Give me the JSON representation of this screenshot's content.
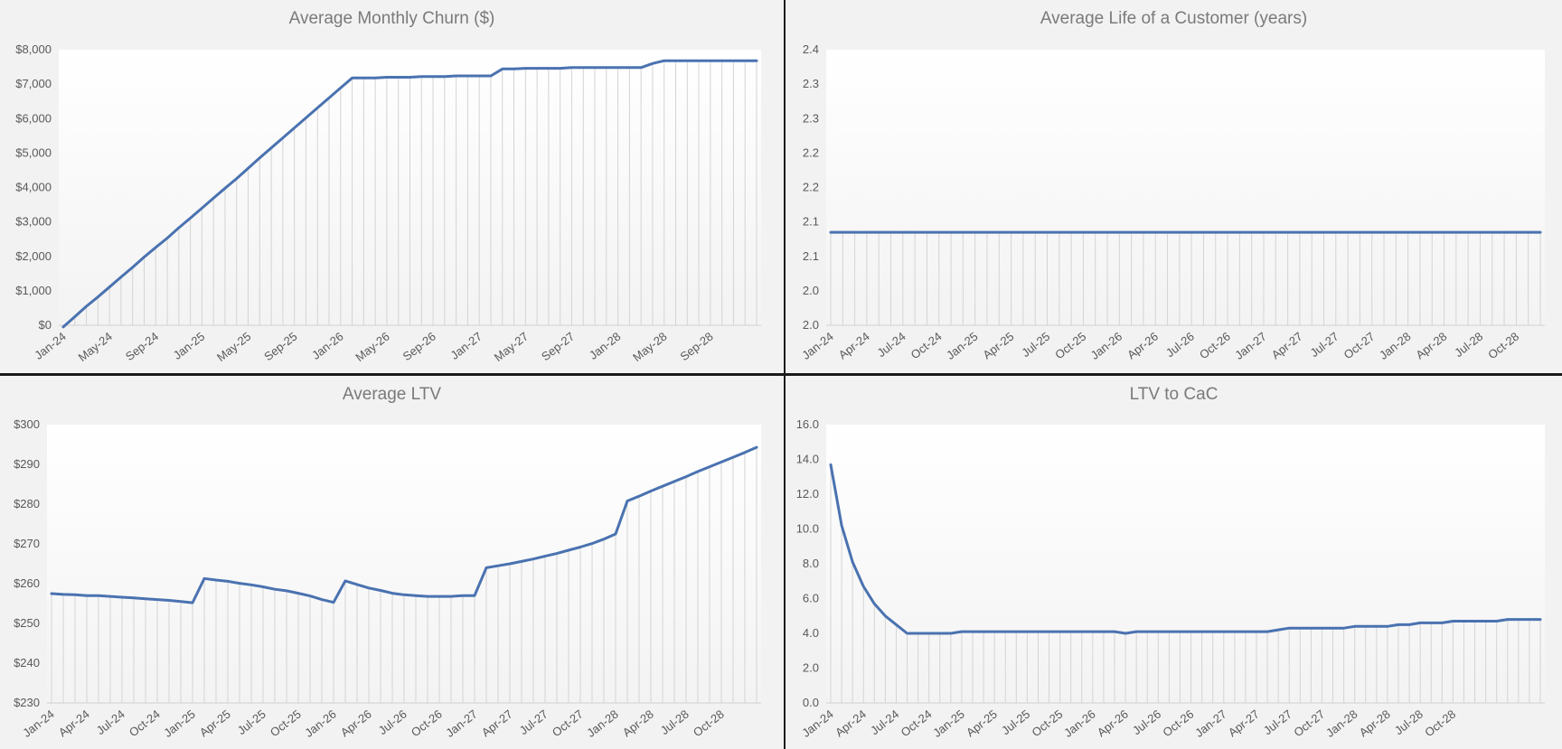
{
  "chart_data": [
    {
      "type": "line",
      "title": "Average Monthly Churn ($)",
      "ylim": [
        0,
        8000
      ],
      "y_ticks": [
        0,
        1000,
        2000,
        3000,
        4000,
        5000,
        6000,
        7000,
        8000
      ],
      "y_tick_labels": [
        "$0",
        "$1,000",
        "$2,000",
        "$3,000",
        "$4,000",
        "$5,000",
        "$6,000",
        "$7,000",
        "$8,000"
      ],
      "x_tick_labels": [
        "Jan-24",
        "May-24",
        "Sep-24",
        "Jan-25",
        "May-25",
        "Sep-25",
        "Jan-26",
        "May-26",
        "Sep-26",
        "Jan-27",
        "May-27",
        "Sep-27",
        "Jan-28",
        "May-28",
        "Sep-28"
      ],
      "x_tick_every": 4,
      "grid": "vertical",
      "color": "#4a72b0",
      "series": [
        {
          "values": [
            -50,
            250,
            550,
            820,
            1110,
            1400,
            1680,
            1980,
            2260,
            2530,
            2830,
            3110,
            3400,
            3690,
            3980,
            4260,
            4560,
            4860,
            5150,
            5440,
            5730,
            6020,
            6310,
            6600,
            6890,
            7180,
            7180,
            7180,
            7200,
            7200,
            7200,
            7220,
            7220,
            7220,
            7240,
            7240,
            7240,
            7240,
            7440,
            7440,
            7460,
            7460,
            7460,
            7460,
            7480,
            7480,
            7480,
            7480,
            7480,
            7480,
            7480,
            7600,
            7680,
            7680,
            7680,
            7680,
            7680,
            7680,
            7680,
            7680,
            7680
          ]
        }
      ]
    },
    {
      "type": "line",
      "title": "Average Life of a Customer (years)",
      "ylim": [
        2.0,
        2.4
      ],
      "y_ticks": [
        2.0,
        2.05,
        2.1,
        2.15,
        2.2,
        2.25,
        2.3,
        2.35,
        2.4
      ],
      "y_tick_labels": [
        "2.0",
        "2.0",
        "2.1",
        "2.1",
        "2.2",
        "2.2",
        "2.3",
        "2.3",
        "2.4"
      ],
      "x_tick_labels": [
        "Jan-24",
        "Apr-24",
        "Jul-24",
        "Oct-24",
        "Jan-25",
        "Apr-25",
        "Jul-25",
        "Oct-25",
        "Jan-26",
        "Apr-26",
        "Jul-26",
        "Oct-26",
        "Jan-27",
        "Apr-27",
        "Jul-27",
        "Oct-27",
        "Jan-28",
        "Apr-28",
        "Jul-28",
        "Oct-28"
      ],
      "x_tick_every": 3,
      "grid": "vertical",
      "color": "#4a72b0",
      "series": [
        {
          "values": [
            2.135,
            2.135,
            2.135,
            2.135,
            2.135,
            2.135,
            2.135,
            2.135,
            2.135,
            2.135,
            2.135,
            2.135,
            2.135,
            2.135,
            2.135,
            2.135,
            2.135,
            2.135,
            2.135,
            2.135,
            2.135,
            2.135,
            2.135,
            2.135,
            2.135,
            2.135,
            2.135,
            2.135,
            2.135,
            2.135,
            2.135,
            2.135,
            2.135,
            2.135,
            2.135,
            2.135,
            2.135,
            2.135,
            2.135,
            2.135,
            2.135,
            2.135,
            2.135,
            2.135,
            2.135,
            2.135,
            2.135,
            2.135,
            2.135,
            2.135,
            2.135,
            2.135,
            2.135,
            2.135,
            2.135,
            2.135,
            2.135,
            2.135,
            2.135,
            2.135
          ]
        }
      ]
    },
    {
      "type": "line",
      "title": "Average LTV",
      "ylim": [
        230,
        300
      ],
      "y_ticks": [
        230,
        240,
        250,
        260,
        270,
        280,
        290,
        300
      ],
      "y_tick_labels": [
        "$230",
        "$240",
        "$250",
        "$260",
        "$270",
        "$280",
        "$290",
        "$300"
      ],
      "x_tick_labels": [
        "Jan-24",
        "Apr-24",
        "Jul-24",
        "Oct-24",
        "Jan-25",
        "Apr-25",
        "Jul-25",
        "Oct-25",
        "Jan-26",
        "Apr-26",
        "Jul-26",
        "Oct-26",
        "Jan-27",
        "Apr-27",
        "Jul-27",
        "Oct-27",
        "Jan-28",
        "Apr-28",
        "Jul-28",
        "Oct-28"
      ],
      "x_tick_every": 3,
      "grid": "vertical",
      "color": "#4a72b0",
      "series": [
        {
          "values": [
            257.5,
            257.3,
            257.2,
            257.0,
            257.0,
            256.8,
            256.6,
            256.4,
            256.2,
            256.0,
            255.8,
            255.5,
            255.2,
            261.3,
            260.9,
            260.6,
            260.1,
            259.7,
            259.2,
            258.6,
            258.2,
            257.6,
            256.9,
            256.0,
            255.3,
            260.7,
            259.8,
            258.9,
            258.3,
            257.6,
            257.2,
            257.0,
            256.8,
            256.8,
            256.8,
            257.0,
            257.0,
            264.0,
            264.5,
            265.0,
            265.6,
            266.2,
            266.9,
            267.6,
            268.4,
            269.2,
            270.1,
            271.2,
            272.5,
            280.8,
            282.0,
            283.3,
            284.5,
            285.7,
            286.9,
            288.2,
            289.4,
            290.6,
            291.8,
            293.0,
            294.3
          ]
        }
      ]
    },
    {
      "type": "line",
      "title": "LTV to CaC",
      "ylim": [
        0,
        16
      ],
      "y_ticks": [
        0,
        2,
        4,
        6,
        8,
        10,
        12,
        14,
        16
      ],
      "y_tick_labels": [
        "0.0",
        "2.0",
        "4.0",
        "6.0",
        "8.0",
        "10.0",
        "12.0",
        "14.0",
        "16.0"
      ],
      "x_tick_labels": [
        "Jan-24",
        "Apr-24",
        "Jul-24",
        "Oct-24",
        "Jan-25",
        "Apr-25",
        "Jul-25",
        "Oct-25",
        "Jan-26",
        "Apr-26",
        "Jul-26",
        "Oct-26",
        "Jan-27",
        "Apr-27",
        "Jul-27",
        "Oct-27",
        "Jan-28",
        "Apr-28",
        "Jul-28",
        "Oct-28"
      ],
      "x_tick_every": 3,
      "grid": "vertical",
      "color": "#4a72b0",
      "series": [
        {
          "values": [
            13.7,
            10.2,
            8.1,
            6.7,
            5.7,
            5.0,
            4.5,
            4.0,
            4.0,
            4.0,
            4.0,
            4.0,
            4.1,
            4.1,
            4.1,
            4.1,
            4.1,
            4.1,
            4.1,
            4.1,
            4.1,
            4.1,
            4.1,
            4.1,
            4.1,
            4.1,
            4.1,
            4.0,
            4.1,
            4.1,
            4.1,
            4.1,
            4.1,
            4.1,
            4.1,
            4.1,
            4.1,
            4.1,
            4.1,
            4.1,
            4.1,
            4.2,
            4.3,
            4.3,
            4.3,
            4.3,
            4.3,
            4.3,
            4.4,
            4.4,
            4.4,
            4.4,
            4.5,
            4.5,
            4.6,
            4.6,
            4.6,
            4.7,
            4.7,
            4.7,
            4.7,
            4.7,
            4.8,
            4.8,
            4.8,
            4.8
          ]
        }
      ]
    }
  ]
}
